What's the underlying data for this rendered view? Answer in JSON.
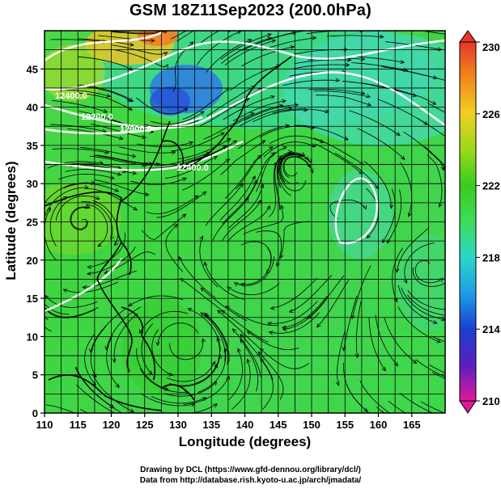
{
  "title": "GSM 18Z11Sep2023 (200.0hPa)",
  "xlabel": "Longitude (degrees)",
  "ylabel": "Latitude  (degrees)",
  "credits": {
    "line1": "Drawing by DCL (https://www.gfd-dennou.org/library/dcl/)",
    "line2": "Data from http://database.rish.kyoto-u.ac.jp/arch/jmadata/"
  },
  "map": {
    "lon_range": [
      110,
      170
    ],
    "lat_range": [
      0,
      50
    ],
    "lon_ticks": [
      110,
      115,
      120,
      125,
      130,
      135,
      140,
      145,
      150,
      155,
      160,
      165
    ],
    "lat_ticks": [
      0,
      5,
      10,
      15,
      20,
      25,
      30,
      35,
      40,
      45
    ],
    "grid": true,
    "field": "geopotential height / streamlines",
    "contour_labels": [
      "12400.0",
      "12200.0",
      "12000.0",
      "12400.0"
    ]
  },
  "colorbar": {
    "ticks": [
      230,
      226,
      222,
      218,
      214,
      210
    ],
    "range": [
      210,
      230
    ],
    "colors": [
      "#e0199b",
      "#5a1fbf",
      "#1a3fd0",
      "#1f9ee6",
      "#2ad6c4",
      "#3edc5a",
      "#38cc1e",
      "#9bd81a",
      "#f0d020",
      "#f08a1a",
      "#e8362a"
    ]
  }
}
